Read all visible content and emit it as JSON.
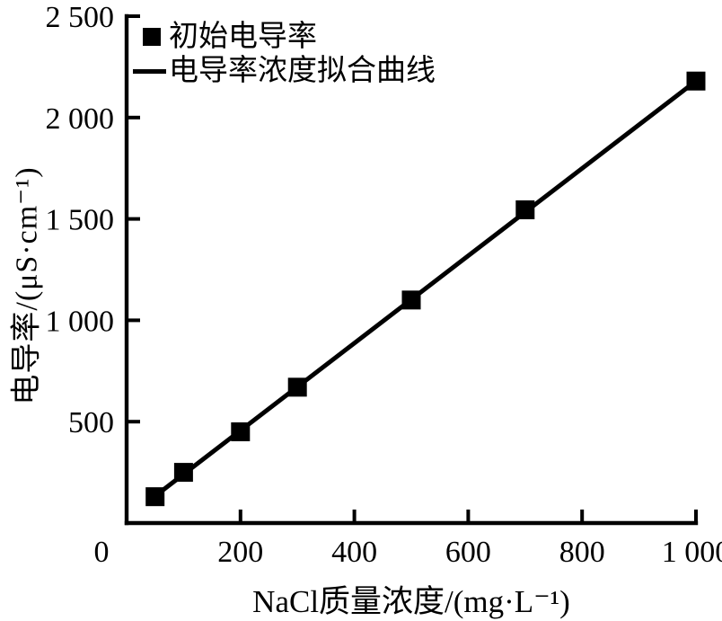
{
  "chart_data": {
    "type": "scatter",
    "title": "",
    "xlabel": "NaCl质量浓度/(mg·L⁻¹)",
    "ylabel": "电导率/(μS·cm⁻¹)",
    "xlim": [
      0,
      1000
    ],
    "ylim": [
      0,
      2500
    ],
    "grid": false,
    "legend_position": "top-left-inside",
    "origin_label": "0",
    "x_axis": {
      "ticks": [
        {
          "value": 200,
          "label": "200"
        },
        {
          "value": 400,
          "label": "400"
        },
        {
          "value": 600,
          "label": "600"
        },
        {
          "value": 800,
          "label": "800"
        },
        {
          "value": 1000,
          "label": "1 000"
        }
      ]
    },
    "y_axis": {
      "ticks": [
        {
          "value": 500,
          "label": "500"
        },
        {
          "value": 1000,
          "label": "1 000"
        },
        {
          "value": 1500,
          "label": "1 500"
        },
        {
          "value": 2000,
          "label": "2 000"
        },
        {
          "value": 2500,
          "label": "2 500"
        }
      ]
    },
    "series": [
      {
        "name": "初始电导率",
        "kind": "scatter",
        "marker": "square",
        "x": [
          50,
          100,
          200,
          300,
          500,
          700,
          1000
        ],
        "y": [
          130,
          250,
          450,
          670,
          1100,
          1545,
          2180
        ]
      },
      {
        "name": "电导率浓度拟合曲线",
        "kind": "line",
        "x": [
          50,
          1000
        ],
        "y": [
          133,
          2180
        ]
      }
    ],
    "colors": {
      "marker": "#000000",
      "line": "#000000",
      "axis": "#000000",
      "text": "#000000",
      "background": "#ffffff"
    }
  }
}
